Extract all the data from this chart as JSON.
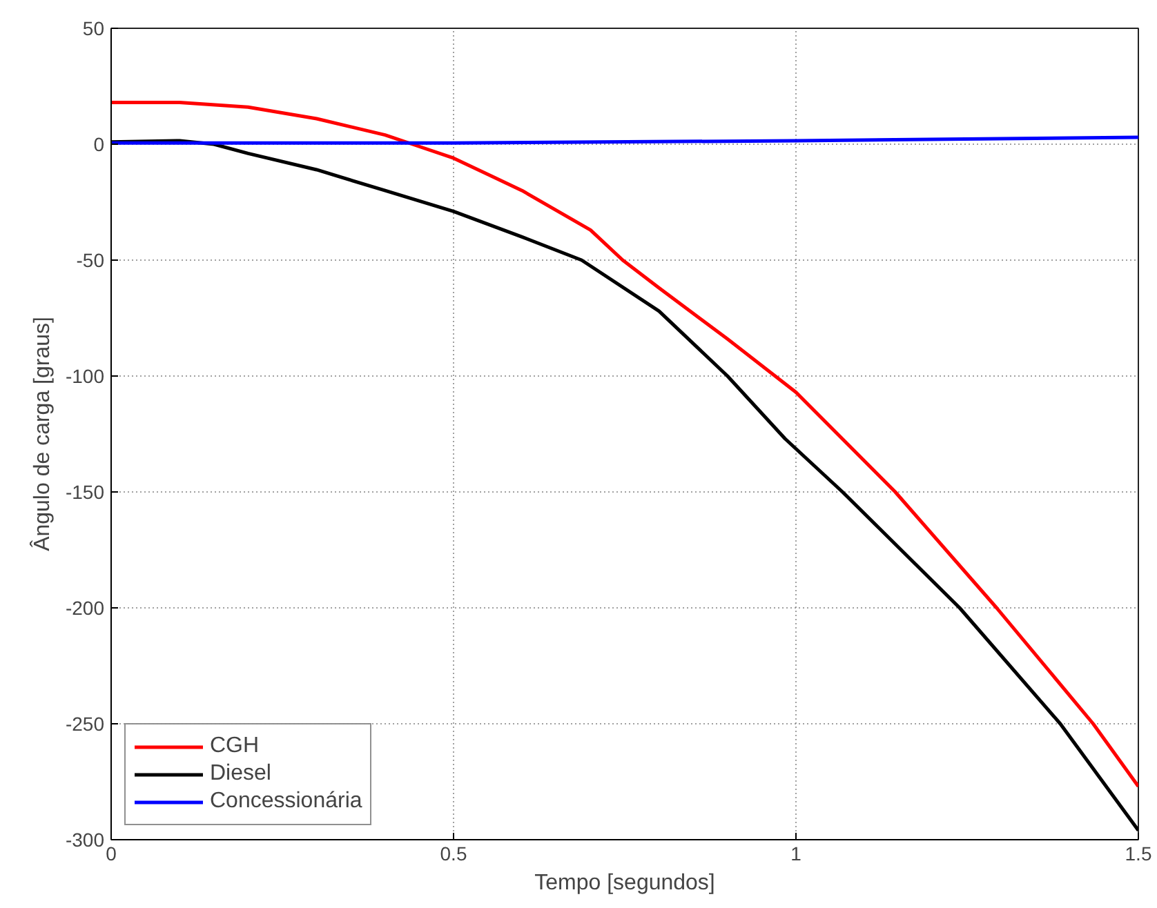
{
  "chart_data": {
    "type": "line",
    "xlabel": "Tempo [segundos]",
    "ylabel": "Ângulo de carga [graus]",
    "xlim": [
      0,
      1.5
    ],
    "ylim": [
      -300,
      50
    ],
    "xticks": [
      0,
      0.5,
      1,
      1.5
    ],
    "yticks": [
      -300,
      -250,
      -200,
      -150,
      -100,
      -50,
      0,
      50
    ],
    "grid": true,
    "legend": "bottom left",
    "line_style": "solid",
    "series": [
      {
        "name": "CGH",
        "color": "#ff0000",
        "x": [
          0,
          0.1,
          0.2,
          0.3,
          0.4,
          0.44,
          0.5,
          0.6,
          0.7,
          0.747,
          0.8,
          0.9,
          1.0,
          1.145,
          1.293,
          1.434,
          1.5
        ],
        "values": [
          18,
          18,
          16,
          11,
          4,
          0,
          -6,
          -20,
          -37,
          -50,
          -62,
          -84,
          -107,
          -150,
          -200,
          -250,
          -277
        ]
      },
      {
        "name": "Diesel",
        "color": "#000000",
        "x": [
          0,
          0.1,
          0.15,
          0.2,
          0.3,
          0.4,
          0.5,
          0.6,
          0.687,
          0.8,
          0.9,
          0.984,
          1.068,
          1.239,
          1.386,
          1.5
        ],
        "values": [
          1,
          1.5,
          0,
          -4,
          -11,
          -20,
          -29,
          -40,
          -50,
          -72,
          -100,
          -127,
          -150,
          -200,
          -250,
          -296
        ]
      },
      {
        "name": "Concessionária",
        "color": "#0000ff",
        "x": [
          0,
          0.5,
          1.0,
          1.5
        ],
        "values": [
          0.5,
          0.5,
          1.5,
          3
        ]
      }
    ]
  }
}
